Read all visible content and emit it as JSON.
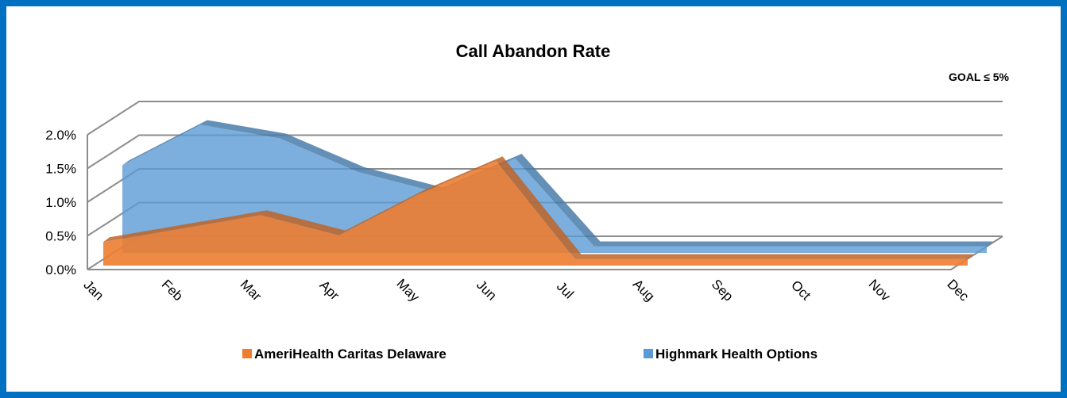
{
  "chart_data": {
    "type": "area3d",
    "title": "Call Abandon Rate",
    "annotation": "GOAL ≤ 5%",
    "categories": [
      "Jan",
      "Feb",
      "Mar",
      "Apr",
      "May",
      "Jun",
      "Jul",
      "Aug",
      "Sep",
      "Oct",
      "Nov",
      "Dec"
    ],
    "series": [
      {
        "name": "AmeriHealth Caritas Delaware",
        "color": "#ed7d31",
        "values": [
          0.35,
          0.55,
          0.75,
          0.45,
          1.05,
          1.55,
          0.1,
          0.1,
          0.1,
          0.1,
          0.1,
          0.1
        ]
      },
      {
        "name": "Highmark Health Options",
        "color": "#5b9bd5",
        "values": [
          1.3,
          1.9,
          1.7,
          1.2,
          0.9,
          1.4,
          0.1,
          0.1,
          0.1,
          0.1,
          0.1,
          0.1
        ]
      }
    ],
    "ylim": [
      0,
      2.0
    ],
    "yticks": [
      {
        "value": 0,
        "label": "0.0%"
      },
      {
        "value": 0.5,
        "label": "0.5%"
      },
      {
        "value": 1.0,
        "label": "1.0%"
      },
      {
        "value": 1.5,
        "label": "1.5%"
      },
      {
        "value": 2.0,
        "label": "2.0%"
      }
    ],
    "grid": true,
    "legend": "bottom"
  }
}
